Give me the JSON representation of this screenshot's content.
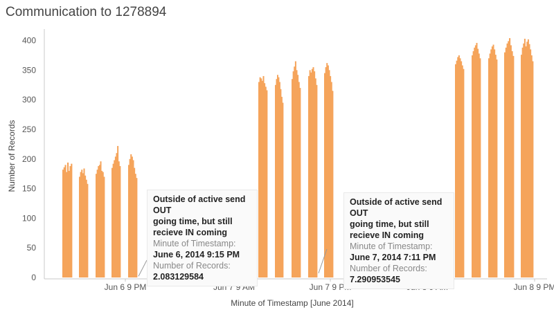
{
  "title": "Communication to 1278894",
  "colors": {
    "bar": "#f5a45b",
    "axis": "#c8c8c8",
    "annotation_line": "#999999"
  },
  "chart_data": {
    "type": "bar",
    "title": "Communication to 1278894",
    "xlabel": "Minute of Timestamp [June 2014]",
    "ylabel": "Number of Records",
    "ylim": [
      0,
      410
    ],
    "yticks": [
      0,
      50,
      100,
      150,
      200,
      250,
      300,
      350,
      400
    ],
    "xticks": [
      "Jun 6 9 PM",
      "Jun 7 9 AM",
      "Jun 7 9 PM",
      "Jun 8 9 AM",
      "Jun 8 9 PM"
    ],
    "grid": false,
    "series": [
      {
        "values": [
          [
            182,
            186,
            190,
            178,
            194,
            180,
            188,
            192
          ],
          [
            170,
            178,
            182,
            176,
            184,
            172,
            165,
            158
          ],
          [
            175,
            182,
            188,
            190,
            196,
            180,
            178,
            170
          ],
          [
            185,
            192,
            198,
            204,
            210,
            222,
            196,
            188
          ],
          [
            190,
            200,
            208,
            204,
            198,
            185,
            175,
            168
          ],
          [
            330,
            338,
            336,
            332,
            340,
            328,
            322,
            316
          ],
          [
            325,
            335,
            342,
            338,
            330,
            318,
            305,
            295
          ],
          [
            335,
            348,
            356,
            365,
            350,
            342,
            330,
            320
          ],
          [
            340,
            350,
            346,
            352,
            355,
            348,
            336,
            325
          ],
          [
            345,
            355,
            362,
            358,
            350,
            340,
            330,
            315
          ],
          [
            360,
            366,
            372,
            375,
            370,
            365,
            358,
            352
          ],
          [
            375,
            382,
            388,
            392,
            396,
            386,
            378,
            370
          ],
          [
            370,
            378,
            385,
            390,
            393,
            385,
            376,
            368
          ],
          [
            380,
            388,
            395,
            399,
            404,
            392,
            382,
            374
          ],
          [
            376,
            388,
            395,
            403,
            390,
            380,
            372,
            365
          ],
          [
            378,
            390,
            398,
            402,
            394,
            385,
            375,
            365
          ]
        ]
      }
    ],
    "annotations": [
      {
        "header_lines": [
          "Outside of active send OUT",
          "going time, but still",
          "recieve IN coming"
        ],
        "field1": "Minute of Timestamp:",
        "value1": "June 6, 2014 9:15 PM",
        "field2": "Number of Records:",
        "value2": "2.083129584"
      },
      {
        "header_lines": [
          "Outside of active send OUT",
          "going time, but still",
          "recieve IN coming"
        ],
        "field1": "Minute of Timestamp:",
        "value1": "June 7, 2014 7:11 PM",
        "field2": "Number of Records:",
        "value2": "7.290953545"
      }
    ]
  }
}
